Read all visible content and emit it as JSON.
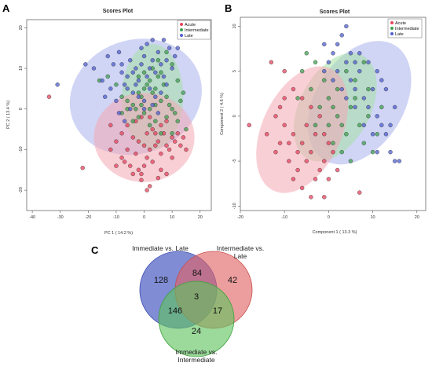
{
  "colors": {
    "acute": "#e8435e",
    "intermediate": "#3fa050",
    "late": "#4f5fd0",
    "acute_fill": "#f4a7b4",
    "intermediate_fill": "#a6e0a6",
    "late_fill": "#a9b2ec",
    "venn_late": "#4f5fc4",
    "venn_inter_late": "#e06262",
    "venn_inter": "#5ec45e"
  },
  "panels": {
    "a": {
      "letter": "A"
    },
    "b": {
      "letter": "B"
    },
    "c": {
      "letter": "C"
    }
  },
  "chart_data": [
    {
      "type": "scatter",
      "title": "Scores Plot",
      "xlabel": "PC 1 ( 14.2 %)",
      "ylabel": "PC 2 ( 13.4 %)",
      "xlim": [
        -42,
        24
      ],
      "ylim": [
        -25,
        22
      ],
      "xticks": [
        -40,
        -30,
        -20,
        -10,
        0,
        10,
        20
      ],
      "yticks": [
        -20,
        -10,
        0,
        10,
        20
      ],
      "grid": false,
      "legend_position": "top-right",
      "legend": [
        "Acute",
        "Intermediate",
        "Late"
      ],
      "ellipses": [
        {
          "group": "late",
          "cx": -3,
          "cy": 3,
          "rx": 24,
          "ry": 14,
          "angle": -20
        },
        {
          "group": "intermediate",
          "cx": 3,
          "cy": 3,
          "rx": 11,
          "ry": 13,
          "angle": 0
        },
        {
          "group": "acute",
          "cx": 0,
          "cy": -7,
          "rx": 18,
          "ry": 11,
          "angle": 0
        }
      ],
      "series": [
        {
          "name": "Acute",
          "color_key": "acute",
          "points": [
            [
              -34,
              3
            ],
            [
              -22,
              -14.5
            ],
            [
              -12,
              -4
            ],
            [
              -10,
              -8
            ],
            [
              -8,
              -12
            ],
            [
              -6,
              -10
            ],
            [
              -5,
              -14
            ],
            [
              -3,
              -11
            ],
            [
              -2,
              -15
            ],
            [
              -1,
              -16
            ],
            [
              -1,
              -17.5
            ],
            [
              0,
              -14
            ],
            [
              1,
              -12
            ],
            [
              2,
              -10
            ],
            [
              3,
              -13
            ],
            [
              4,
              -9
            ],
            [
              5,
              -8
            ],
            [
              6,
              -11
            ],
            [
              7,
              -6
            ],
            [
              8,
              -9
            ],
            [
              9,
              -10
            ],
            [
              10,
              -7
            ],
            [
              11,
              -8
            ],
            [
              12,
              -6
            ],
            [
              13,
              -9
            ],
            [
              15,
              -10
            ],
            [
              5,
              -17
            ],
            [
              2,
              -19
            ],
            [
              -8,
              -6
            ],
            [
              -4,
              -7
            ],
            [
              -2,
              -8
            ],
            [
              0,
              -9
            ],
            [
              1,
              -6
            ],
            [
              3,
              -5
            ],
            [
              4,
              -6
            ],
            [
              6,
              -4
            ],
            [
              8,
              -3
            ],
            [
              -6,
              -4
            ],
            [
              -3,
              -3
            ],
            [
              -1,
              -2
            ],
            [
              2,
              -2
            ],
            [
              10,
              -12
            ],
            [
              14,
              -7
            ],
            [
              -10,
              -14
            ],
            [
              -4,
              -16
            ],
            [
              6,
              -15
            ],
            [
              8,
              -16
            ],
            [
              -12,
              -10
            ],
            [
              -7,
              -13
            ],
            [
              1,
              -20
            ]
          ]
        },
        {
          "name": "Intermediate",
          "color_key": "intermediate",
          "points": [
            [
              -16,
              7
            ],
            [
              -13,
              8
            ],
            [
              -10,
              6
            ],
            [
              -8,
              3
            ],
            [
              -6,
              2
            ],
            [
              -4,
              1
            ],
            [
              -3,
              0
            ],
            [
              -2,
              4
            ],
            [
              -1,
              3
            ],
            [
              0,
              5
            ],
            [
              1,
              6
            ],
            [
              2,
              7
            ],
            [
              3,
              4
            ],
            [
              4,
              5
            ],
            [
              5,
              8
            ],
            [
              6,
              9
            ],
            [
              7,
              6
            ],
            [
              8,
              3
            ],
            [
              9,
              1
            ],
            [
              10,
              0
            ],
            [
              11,
              -1
            ],
            [
              12,
              -3
            ],
            [
              13,
              2
            ],
            [
              14,
              4
            ],
            [
              15,
              -5
            ],
            [
              6,
              -6
            ],
            [
              4,
              -3
            ],
            [
              2,
              -4
            ],
            [
              0,
              -1
            ],
            [
              -2,
              -2
            ],
            [
              -4,
              -3
            ],
            [
              -6,
              0
            ],
            [
              -8,
              -1
            ],
            [
              3,
              10
            ],
            [
              5,
              12
            ],
            [
              8,
              14
            ],
            [
              10,
              11
            ],
            [
              12,
              7
            ],
            [
              0,
              9
            ],
            [
              -2,
              8
            ],
            [
              4,
              1
            ],
            [
              6,
              2
            ],
            [
              8,
              -2
            ],
            [
              10,
              -6
            ],
            [
              2,
              0
            ],
            [
              -1,
              1
            ]
          ]
        },
        {
          "name": "Late",
          "color_key": "late",
          "points": [
            [
              -31,
              6
            ],
            [
              -21,
              11
            ],
            [
              -18,
              10
            ],
            [
              -15,
              7
            ],
            [
              -13,
              13
            ],
            [
              -11,
              11
            ],
            [
              -9,
              14
            ],
            [
              -8,
              9
            ],
            [
              -7,
              6
            ],
            [
              -6,
              8
            ],
            [
              -5,
              12
            ],
            [
              -4,
              9
            ],
            [
              -3,
              10
            ],
            [
              -2,
              7
            ],
            [
              -1,
              11
            ],
            [
              0,
              13
            ],
            [
              1,
              8
            ],
            [
              2,
              10
            ],
            [
              3,
              12
            ],
            [
              4,
              9
            ],
            [
              5,
              14
            ],
            [
              6,
              11
            ],
            [
              7,
              8
            ],
            [
              8,
              12
            ],
            [
              9,
              15
            ],
            [
              10,
              10
            ],
            [
              11,
              13
            ],
            [
              12,
              15
            ],
            [
              -4,
              4
            ],
            [
              -2,
              3
            ],
            [
              0,
              2
            ],
            [
              2,
              5
            ],
            [
              4,
              3
            ],
            [
              6,
              4
            ],
            [
              8,
              6
            ],
            [
              -10,
              2
            ],
            [
              -6,
              5
            ],
            [
              -8,
              11
            ],
            [
              -12,
              5
            ],
            [
              1,
              16
            ],
            [
              3,
              17
            ],
            [
              -1,
              15
            ],
            [
              7,
              17
            ],
            [
              -3,
              6
            ],
            [
              -5,
              0
            ],
            [
              0,
              0
            ],
            [
              3,
              1
            ],
            [
              5,
              -1
            ],
            [
              -14,
              3
            ],
            [
              -9,
              -1
            ],
            [
              -7,
              -3
            ]
          ]
        }
      ]
    },
    {
      "type": "scatter",
      "title": "Scores Plot",
      "xlabel": "Component 1 ( 13.3 %)",
      "ylabel": "Component 2 ( 4.6 %)",
      "xlim": [
        -20,
        22
      ],
      "ylim": [
        -10.5,
        11
      ],
      "xticks": [
        -20,
        -10,
        0,
        10,
        20
      ],
      "yticks": [
        -10,
        -5,
        0,
        5,
        10
      ],
      "grid": false,
      "legend_position": "top-right",
      "legend": [
        "Acute",
        "Intermediate",
        "Late"
      ],
      "ellipses": [
        {
          "group": "late",
          "cx": 7,
          "cy": 1.5,
          "rx": 10,
          "ry": 7.5,
          "angle": 32
        },
        {
          "group": "intermediate",
          "cx": 1.5,
          "cy": 1,
          "rx": 8,
          "ry": 6.5,
          "angle": 28
        },
        {
          "group": "acute",
          "cx": -6,
          "cy": -1.5,
          "rx": 9,
          "ry": 7.5,
          "angle": 25
        }
      ],
      "series": [
        {
          "name": "Acute",
          "color_key": "acute",
          "points": [
            [
              -18,
              -1
            ],
            [
              -14,
              -2
            ],
            [
              -12,
              0
            ],
            [
              -11,
              1
            ],
            [
              -10,
              -1
            ],
            [
              -9,
              -3
            ],
            [
              -8,
              -2
            ],
            [
              -7,
              -4
            ],
            [
              -6,
              -3
            ],
            [
              -5,
              -5
            ],
            [
              -4,
              -4
            ],
            [
              -3,
              -2
            ],
            [
              -2,
              -6
            ],
            [
              -1,
              -5
            ],
            [
              0,
              -3
            ],
            [
              1,
              -4
            ],
            [
              2,
              -6
            ],
            [
              -13,
              6
            ],
            [
              -10,
              5
            ],
            [
              -8,
              3
            ],
            [
              -6,
              2
            ],
            [
              -9,
              -5
            ],
            [
              -7,
              -6
            ],
            [
              -5,
              -1
            ],
            [
              -3,
              -7
            ],
            [
              -1,
              -2
            ],
            [
              -11,
              -3
            ],
            [
              -12,
              -4
            ],
            [
              -4,
              1
            ],
            [
              -2,
              0
            ],
            [
              7,
              -8.5
            ],
            [
              -8,
              -7
            ],
            [
              -6,
              -8
            ],
            [
              0,
              -7
            ],
            [
              -10,
              2
            ],
            [
              -4,
              -9
            ],
            [
              -1,
              -9
            ]
          ]
        },
        {
          "name": "Intermediate",
          "color_key": "intermediate",
          "points": [
            [
              -5,
              7
            ],
            [
              -3,
              6
            ],
            [
              -1,
              4
            ],
            [
              0,
              2
            ],
            [
              1,
              1
            ],
            [
              2,
              0
            ],
            [
              3,
              -1
            ],
            [
              4,
              -2
            ],
            [
              5,
              1
            ],
            [
              6,
              2
            ],
            [
              7,
              -1
            ],
            [
              8,
              -3
            ],
            [
              9,
              0
            ],
            [
              10,
              -4
            ],
            [
              11,
              -2
            ],
            [
              -4,
              3
            ],
            [
              -2,
              1
            ],
            [
              0,
              -1
            ],
            [
              2,
              3
            ],
            [
              4,
              5
            ],
            [
              6,
              4
            ],
            [
              8,
              6
            ],
            [
              1,
              -3
            ],
            [
              3,
              -4
            ],
            [
              5,
              -5
            ],
            [
              -6,
              5
            ],
            [
              -7,
              2
            ],
            [
              -3,
              -1
            ],
            [
              9,
              3
            ],
            [
              12,
              1
            ]
          ]
        },
        {
          "name": "Late",
          "color_key": "late",
          "points": [
            [
              -1,
              8
            ],
            [
              1,
              7
            ],
            [
              2,
              5
            ],
            [
              3,
              9
            ],
            [
              4,
              6
            ],
            [
              5,
              4
            ],
            [
              6,
              3
            ],
            [
              7,
              5
            ],
            [
              8,
              2
            ],
            [
              9,
              1
            ],
            [
              10,
              3
            ],
            [
              11,
              0
            ],
            [
              12,
              -1
            ],
            [
              13,
              -2
            ],
            [
              14,
              -4
            ],
            [
              15,
              -5
            ],
            [
              16,
              -5
            ],
            [
              -1,
              5
            ],
            [
              0,
              6
            ],
            [
              1,
              4
            ],
            [
              3,
              3
            ],
            [
              5,
              7
            ],
            [
              7,
              7
            ],
            [
              9,
              6
            ],
            [
              11,
              5
            ],
            [
              13,
              3
            ],
            [
              15,
              1
            ],
            [
              4,
              2
            ],
            [
              6,
              1
            ],
            [
              8,
              -1
            ],
            [
              10,
              -2
            ],
            [
              2,
              8
            ],
            [
              4,
              10
            ],
            [
              12,
              4
            ],
            [
              14,
              -1
            ],
            [
              11,
              -4
            ],
            [
              6,
              6
            ]
          ]
        }
      ]
    },
    {
      "type": "venn",
      "sets": [
        {
          "label_lines": [
            "Immediate vs. Late"
          ],
          "color_key": "venn_late"
        },
        {
          "label_lines": [
            "Intermediate vs.",
            "Late"
          ],
          "color_key": "venn_inter_late"
        },
        {
          "label_lines": [
            "Immediate vs.",
            "Intermediate"
          ],
          "color_key": "venn_inter"
        }
      ],
      "regions": {
        "a_only": 128,
        "b_only": 42,
        "c_only": 24,
        "ab": 84,
        "ac": 146,
        "bc": 17,
        "abc": 3
      }
    }
  ]
}
